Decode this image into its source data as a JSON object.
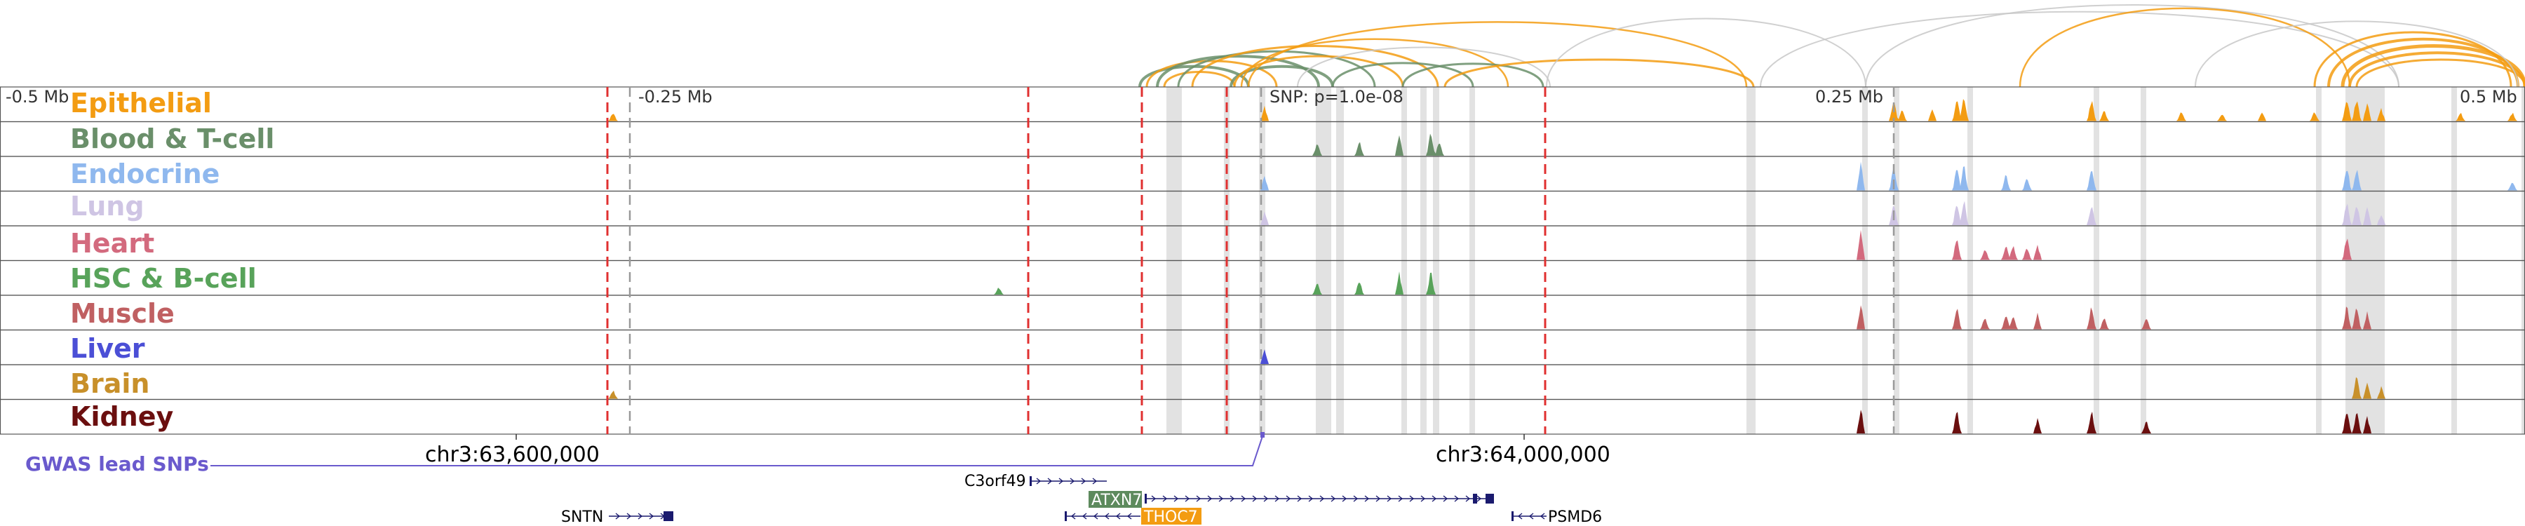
{
  "ruler": {
    "left_label": "-0.5 Mb",
    "mid_left_label": "-0.25 Mb",
    "snp_label": "SNP: p=1.0e-08",
    "mid_right_label": "0.25 Mb",
    "right_label": "0.5 Mb"
  },
  "tracks": [
    {
      "name": "Epithelial",
      "color": "#f39c12"
    },
    {
      "name": "Blood & T-cell",
      "color": "#6a8f6a"
    },
    {
      "name": "Endocrine",
      "color": "#8fb8ee"
    },
    {
      "name": "Lung",
      "color": "#cfc5e4"
    },
    {
      "name": "Heart",
      "color": "#d36a7e"
    },
    {
      "name": "HSC & B-cell",
      "color": "#58a35a"
    },
    {
      "name": "Muscle",
      "color": "#c06062"
    },
    {
      "name": "Liver",
      "color": "#4b4fd6"
    },
    {
      "name": "Brain",
      "color": "#c8902a"
    },
    {
      "name": "Kidney",
      "color": "#6b0f0f"
    }
  ],
  "coordinates": {
    "left": "chr3:63,600,000",
    "right": "chr3:64,000,000"
  },
  "gwas": {
    "label": "GWAS lead SNPs",
    "color": "#6a5acd"
  },
  "genes": {
    "c3orf49": "C3orf49",
    "atxn7": "ATXN7",
    "thoc7": "THOC7",
    "sntn": "SNTN",
    "psmd6": "PSMD6",
    "atxn7_color": "#5d8a5d",
    "thoc7_color": "#f39c12",
    "structure_color": "#1a1a6e"
  },
  "colors": {
    "red_dash": "#e03030",
    "gray_dash": "#999999",
    "highlight": "#d8d8d8",
    "loop_gray": "#c8c8c8"
  }
}
